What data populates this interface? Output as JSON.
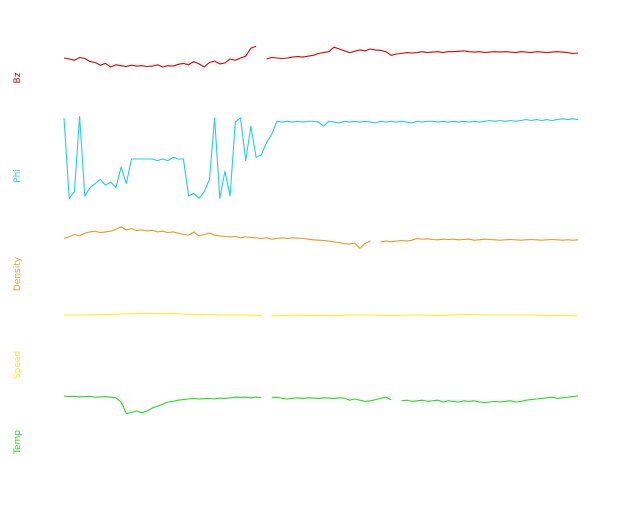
{
  "chart_data": [
    {
      "type": "line",
      "title": "",
      "ylabel": "Bz",
      "color": "#dd0000",
      "ylim": [
        0,
        1
      ],
      "grid": false,
      "x": [
        0,
        1,
        2,
        3,
        4,
        5,
        6,
        7,
        8,
        9,
        10,
        11,
        12,
        13,
        14,
        15,
        16,
        17,
        18,
        19,
        20,
        21,
        22,
        23,
        24,
        25,
        26,
        27,
        28,
        29,
        30,
        31,
        32,
        33,
        34,
        35,
        36,
        37,
        38,
        39,
        40,
        41,
        42,
        43,
        44,
        45,
        46,
        47,
        48,
        49,
        50,
        51,
        52,
        53,
        54,
        55,
        56,
        57,
        58,
        59,
        60,
        61,
        62,
        63,
        64,
        65,
        66,
        67,
        68,
        69,
        70,
        71,
        72,
        73,
        74,
        75,
        76,
        77,
        78,
        79,
        80,
        81,
        82,
        83,
        84,
        85,
        86,
        87,
        88,
        89,
        90,
        91,
        92,
        93,
        94,
        95,
        96,
        97,
        98,
        99
      ],
      "values": [
        0.6,
        0.58,
        0.55,
        0.61,
        0.59,
        0.52,
        0.5,
        0.44,
        0.48,
        0.4,
        0.45,
        0.43,
        0.41,
        0.44,
        0.42,
        0.43,
        0.41,
        0.42,
        0.45,
        0.4,
        0.43,
        0.42,
        0.46,
        0.48,
        0.45,
        0.52,
        0.47,
        0.4,
        0.5,
        0.53,
        0.47,
        0.49,
        0.58,
        0.55,
        0.6,
        0.64,
        0.82,
        0.86,
        null,
        0.58,
        0.61,
        0.6,
        0.59,
        0.6,
        0.62,
        0.63,
        0.62,
        0.64,
        0.66,
        0.7,
        0.72,
        0.74,
        0.84,
        0.8,
        0.76,
        0.72,
        0.75,
        0.78,
        0.76,
        0.8,
        0.78,
        0.77,
        0.74,
        0.66,
        0.69,
        0.7,
        0.72,
        0.71,
        0.72,
        0.74,
        0.72,
        0.73,
        0.74,
        0.72,
        0.74,
        0.74,
        0.75,
        0.76,
        0.74,
        0.73,
        0.74,
        0.72,
        0.73,
        0.74,
        0.73,
        0.74,
        0.73,
        0.72,
        0.74,
        0.73,
        0.72,
        0.74,
        0.73,
        0.72,
        0.73,
        0.74,
        0.73,
        0.72,
        0.7,
        0.71
      ]
    },
    {
      "type": "line",
      "title": "",
      "ylabel": "Phi",
      "color": "#22ccee",
      "ylim": [
        0,
        1
      ],
      "grid": false,
      "x": [
        0,
        1,
        2,
        3,
        4,
        5,
        6,
        7,
        8,
        9,
        10,
        11,
        12,
        13,
        14,
        15,
        16,
        17,
        18,
        19,
        20,
        21,
        22,
        23,
        24,
        25,
        26,
        27,
        28,
        29,
        30,
        31,
        32,
        33,
        34,
        35,
        36,
        37,
        38,
        39,
        40,
        41,
        42,
        43,
        44,
        45,
        46,
        47,
        48,
        49,
        50,
        51,
        52,
        53,
        54,
        55,
        56,
        57,
        58,
        59,
        60,
        61,
        62,
        63,
        64,
        65,
        66,
        67,
        68,
        69,
        70,
        71,
        72,
        73,
        74,
        75,
        76,
        77,
        78,
        79,
        80,
        81,
        82,
        83,
        84,
        85,
        86,
        87,
        88,
        89,
        90,
        91,
        92,
        93,
        94,
        95,
        96,
        97,
        98,
        99
      ],
      "values": [
        1.0,
        0.02,
        0.1,
        1.02,
        0.05,
        0.15,
        0.2,
        0.25,
        0.18,
        0.22,
        0.15,
        0.4,
        0.2,
        0.5,
        0.5,
        0.5,
        0.5,
        0.5,
        0.48,
        0.5,
        0.48,
        0.52,
        0.5,
        0.5,
        0.05,
        0.08,
        0.02,
        0.1,
        0.25,
        1.0,
        0.02,
        0.35,
        0.05,
        0.95,
        1.0,
        0.48,
        0.9,
        0.52,
        0.55,
        0.7,
        0.8,
        0.96,
        0.95,
        0.96,
        0.95,
        0.96,
        0.95,
        0.96,
        0.96,
        0.95,
        0.9,
        0.96,
        0.95,
        0.94,
        0.96,
        0.95,
        0.96,
        0.95,
        0.96,
        0.95,
        0.94,
        0.96,
        0.95,
        0.96,
        0.95,
        0.96,
        0.95,
        0.94,
        0.96,
        0.95,
        0.96,
        0.96,
        0.95,
        0.96,
        0.95,
        0.96,
        0.95,
        0.96,
        0.95,
        0.96,
        0.95,
        0.96,
        0.97,
        0.96,
        0.97,
        0.96,
        0.97,
        0.96,
        0.97,
        0.98,
        0.97,
        0.98,
        0.97,
        0.98,
        0.97,
        0.98,
        0.99,
        0.98,
        0.99,
        0.98
      ]
    },
    {
      "type": "line",
      "title": "",
      "ylabel": "Density",
      "color": "#ee9922",
      "ylim": [
        0,
        1
      ],
      "grid": false,
      "x": [
        0,
        1,
        2,
        3,
        4,
        5,
        6,
        7,
        8,
        9,
        10,
        11,
        12,
        13,
        14,
        15,
        16,
        17,
        18,
        19,
        20,
        21,
        22,
        23,
        24,
        25,
        26,
        27,
        28,
        29,
        30,
        31,
        32,
        33,
        34,
        35,
        36,
        37,
        38,
        39,
        40,
        41,
        42,
        43,
        44,
        45,
        46,
        47,
        48,
        49,
        50,
        51,
        52,
        53,
        54,
        55,
        56,
        57,
        58,
        59,
        60,
        61,
        62,
        63,
        64,
        65,
        66,
        67,
        68,
        69,
        70,
        71,
        72,
        73,
        74,
        75,
        76,
        77,
        78,
        79,
        80,
        81,
        82,
        83,
        84,
        85,
        86,
        87,
        88,
        89,
        90,
        91,
        92,
        93,
        94,
        95,
        96,
        97,
        98,
        99
      ],
      "values": [
        0.5,
        0.55,
        0.62,
        0.58,
        0.66,
        0.7,
        0.72,
        0.68,
        0.7,
        0.72,
        0.78,
        0.85,
        0.76,
        0.8,
        0.74,
        0.76,
        0.73,
        0.75,
        0.7,
        0.72,
        0.68,
        0.7,
        0.66,
        0.62,
        0.6,
        0.7,
        0.58,
        0.62,
        0.66,
        0.6,
        0.58,
        0.56,
        0.55,
        0.56,
        0.52,
        0.55,
        0.53,
        0.52,
        0.5,
        0.52,
        0.48,
        0.5,
        0.52,
        0.5,
        0.52,
        0.51,
        0.5,
        0.48,
        0.46,
        0.45,
        0.44,
        0.42,
        0.4,
        0.38,
        0.34,
        0.33,
        0.36,
        0.2,
        0.35,
        0.42,
        null,
        0.4,
        0.42,
        0.4,
        0.42,
        0.44,
        0.42,
        0.45,
        0.5,
        0.48,
        0.49,
        0.47,
        0.46,
        0.48,
        0.47,
        0.48,
        0.46,
        0.47,
        0.48,
        0.45,
        0.46,
        0.48,
        0.47,
        0.46,
        0.45,
        0.46,
        0.47,
        0.46,
        0.45,
        0.46,
        0.47,
        0.46,
        0.45,
        0.46,
        0.47,
        0.46,
        0.45,
        0.46,
        0.45,
        0.46
      ]
    },
    {
      "type": "line",
      "title": "",
      "ylabel": "Speed",
      "color": "#ffee22",
      "ylim": [
        0,
        1
      ],
      "grid": false,
      "x": [
        0,
        1,
        2,
        3,
        4,
        5,
        6,
        7,
        8,
        9,
        10,
        11,
        12,
        13,
        14,
        15,
        16,
        17,
        18,
        19,
        20,
        21,
        22,
        23,
        24,
        25,
        26,
        27,
        28,
        29,
        30,
        31,
        32,
        33,
        34,
        35,
        36,
        37,
        38,
        39,
        40,
        41,
        42,
        43,
        44,
        45,
        46,
        47,
        48,
        49,
        50,
        51,
        52,
        53,
        54,
        55,
        56,
        57,
        58,
        59,
        60,
        61,
        62,
        63,
        64,
        65,
        66,
        67,
        68,
        69,
        70,
        71,
        72,
        73,
        74,
        75,
        76,
        77,
        78,
        79,
        80,
        81,
        82,
        83,
        84,
        85,
        86,
        87,
        88,
        89,
        90,
        91,
        92,
        93,
        94,
        95,
        96,
        97,
        98,
        99
      ],
      "values": [
        0.5,
        0.5,
        0.5,
        0.5,
        0.5,
        0.51,
        0.51,
        0.52,
        0.52,
        0.53,
        0.54,
        0.55,
        0.56,
        0.56,
        0.57,
        0.57,
        0.57,
        0.57,
        0.58,
        0.58,
        0.57,
        0.57,
        0.56,
        0.55,
        0.54,
        0.53,
        0.52,
        0.52,
        0.51,
        0.51,
        0.51,
        0.5,
        0.5,
        0.5,
        0.5,
        0.5,
        0.49,
        0.49,
        0.48,
        null,
        0.46,
        0.46,
        0.47,
        0.48,
        0.49,
        0.5,
        0.49,
        0.48,
        0.47,
        0.48,
        0.49,
        0.48,
        0.47,
        0.48,
        0.49,
        0.5,
        0.5,
        0.5,
        0.5,
        0.5,
        0.5,
        0.49,
        0.48,
        0.47,
        0.48,
        0.49,
        0.5,
        0.5,
        0.5,
        0.5,
        0.49,
        0.48,
        0.47,
        0.48,
        0.49,
        0.5,
        0.51,
        0.52,
        0.53,
        0.52,
        0.51,
        0.5,
        0.5,
        0.5,
        0.5,
        0.5,
        0.5,
        0.5,
        0.5,
        0.5,
        0.5,
        0.49,
        0.48,
        0.47,
        0.48,
        0.49,
        0.48,
        0.47,
        0.46,
        0.46
      ]
    },
    {
      "type": "line",
      "title": "",
      "ylabel": "Temp",
      "color": "#22dd22",
      "ylim": [
        0,
        1
      ],
      "grid": false,
      "x": [
        0,
        1,
        2,
        3,
        4,
        5,
        6,
        7,
        8,
        9,
        10,
        11,
        12,
        13,
        14,
        15,
        16,
        17,
        18,
        19,
        20,
        21,
        22,
        23,
        24,
        25,
        26,
        27,
        28,
        29,
        30,
        31,
        32,
        33,
        34,
        35,
        36,
        37,
        38,
        39,
        40,
        41,
        42,
        43,
        44,
        45,
        46,
        47,
        48,
        49,
        50,
        51,
        52,
        53,
        54,
        55,
        56,
        57,
        58,
        59,
        60,
        61,
        62,
        63,
        64,
        65,
        66,
        67,
        68,
        69,
        70,
        71,
        72,
        73,
        74,
        75,
        76,
        77,
        78,
        79,
        80,
        81,
        82,
        83,
        84,
        85,
        86,
        87,
        88,
        89,
        90,
        91,
        92,
        93,
        94,
        95,
        96,
        97,
        98,
        99
      ],
      "values": [
        0.8,
        0.78,
        0.79,
        0.77,
        0.78,
        0.79,
        0.76,
        0.77,
        0.78,
        0.76,
        0.74,
        0.6,
        0.22,
        0.25,
        0.3,
        0.24,
        0.3,
        0.4,
        0.46,
        0.52,
        0.6,
        0.62,
        0.66,
        0.68,
        0.7,
        0.72,
        0.7,
        0.71,
        0.72,
        0.7,
        0.73,
        0.72,
        0.74,
        0.76,
        0.75,
        0.76,
        0.74,
        0.76,
        0.75,
        null,
        0.74,
        0.76,
        0.72,
        0.7,
        0.72,
        0.74,
        0.72,
        0.74,
        0.73,
        0.72,
        0.74,
        0.73,
        0.72,
        0.74,
        0.73,
        0.66,
        0.7,
        0.66,
        0.62,
        0.64,
        0.68,
        0.72,
        0.76,
        0.68,
        null,
        0.64,
        0.66,
        0.62,
        0.64,
        0.66,
        0.62,
        0.64,
        0.66,
        0.6,
        0.64,
        0.62,
        0.6,
        0.64,
        0.62,
        0.64,
        0.6,
        0.58,
        0.6,
        0.62,
        0.6,
        0.62,
        0.64,
        0.6,
        0.62,
        0.66,
        0.68,
        0.7,
        0.72,
        0.74,
        0.76,
        0.72,
        0.74,
        0.76,
        0.78,
        0.8
      ]
    }
  ]
}
